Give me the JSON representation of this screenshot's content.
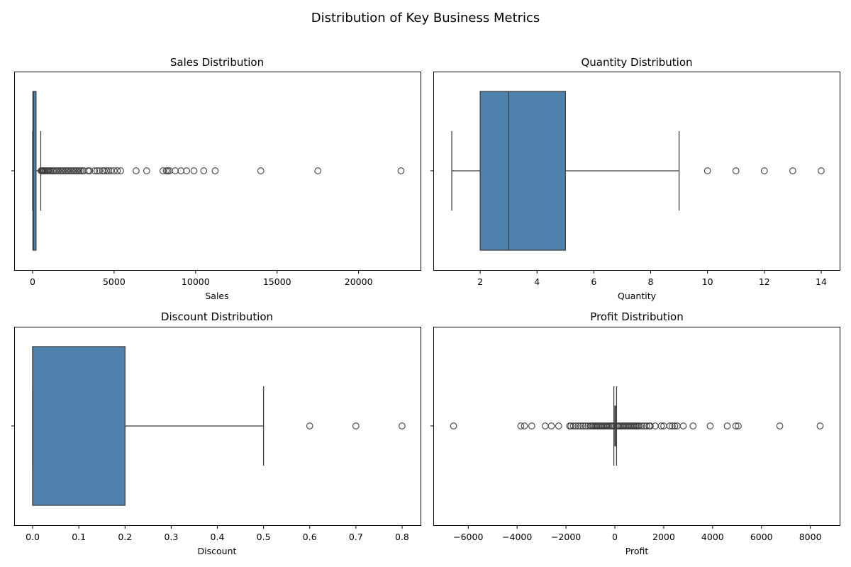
{
  "figure": {
    "suptitle": "Distribution of Key Business Metrics",
    "box_color": "#4f83ad",
    "line_color": "#3f3f3f"
  },
  "chart_data": [
    {
      "type": "boxplot",
      "title": "Sales Distribution",
      "xlabel": "Sales",
      "ylabel": "",
      "xlim": [
        -1130,
        23800
      ],
      "ticks": [
        0,
        5000,
        10000,
        15000,
        20000
      ],
      "tick_labels": [
        "0",
        "5000",
        "10000",
        "15000",
        "20000"
      ],
      "stats": {
        "whisker_low": 0.4,
        "q1": 17,
        "median": 55,
        "q3": 210,
        "whisker_high": 500
      },
      "box_height": 0.8,
      "outliers": [
        520,
        560,
        600,
        650,
        700,
        760,
        820,
        880,
        950,
        1020,
        1100,
        1180,
        1260,
        1350,
        1450,
        1550,
        1650,
        1750,
        1850,
        1950,
        2050,
        2150,
        2250,
        2350,
        2450,
        2550,
        2650,
        2750,
        2850,
        2950,
        3050,
        3150,
        3400,
        3500,
        3800,
        3950,
        4100,
        4300,
        4400,
        4550,
        4650,
        4800,
        5000,
        5200,
        5400,
        6350,
        7000,
        8000,
        8200,
        8300,
        8400,
        8750,
        9100,
        9450,
        9900,
        10500,
        11200,
        14000,
        17500,
        22600
      ]
    },
    {
      "type": "boxplot",
      "title": "Quantity Distribution",
      "xlabel": "Quantity",
      "ylabel": "",
      "xlim": [
        0.35,
        14.65
      ],
      "ticks": [
        2,
        4,
        6,
        8,
        10,
        12,
        14
      ],
      "tick_labels": [
        "2",
        "4",
        "6",
        "8",
        "10",
        "12",
        "14"
      ],
      "stats": {
        "whisker_low": 1,
        "q1": 2,
        "median": 3,
        "q3": 5,
        "whisker_high": 9
      },
      "box_height": 0.8,
      "outliers": [
        10,
        11,
        12,
        13,
        14
      ]
    },
    {
      "type": "boxplot",
      "title": "Discount Distribution",
      "xlabel": "Discount",
      "ylabel": "",
      "xlim": [
        -0.04,
        0.84
      ],
      "ticks": [
        0.0,
        0.1,
        0.2,
        0.3,
        0.4,
        0.5,
        0.6,
        0.7,
        0.8
      ],
      "tick_labels": [
        "0.0",
        "0.1",
        "0.2",
        "0.3",
        "0.4",
        "0.5",
        "0.6",
        "0.7",
        "0.8"
      ],
      "stats": {
        "whisker_low": 0.0,
        "q1": 0.0,
        "median": 0.0,
        "q3": 0.2,
        "whisker_high": 0.5
      },
      "box_height": 0.8,
      "outliers": [
        0.6,
        0.7,
        0.8
      ]
    },
    {
      "type": "boxplot",
      "title": "Profit Distribution",
      "xlabel": "Profit",
      "ylabel": "",
      "xlim": [
        -7430,
        9200
      ],
      "ticks": [
        -6000,
        -4000,
        -2000,
        0,
        2000,
        4000,
        6000,
        8000
      ],
      "tick_labels": [
        "−6000",
        "−4000",
        "−2000",
        "0",
        "2000",
        "4000",
        "6000",
        "8000"
      ],
      "stats": {
        "whisker_low": -40,
        "q1": 2,
        "median": 9,
        "q3": 30,
        "whisker_high": 70
      },
      "box_height": 0.2,
      "outliers": [
        -6600,
        -3850,
        -3700,
        -3400,
        -2850,
        -2600,
        -2300,
        -1850,
        -1800,
        -1700,
        -1600,
        -1500,
        -1400,
        -1300,
        -1200,
        -1100,
        -1000,
        -950,
        -900,
        -850,
        -800,
        -750,
        -700,
        -650,
        -600,
        -550,
        -500,
        -450,
        -400,
        -350,
        -300,
        -250,
        -200,
        -150,
        -100,
        -75,
        100,
        150,
        200,
        250,
        300,
        350,
        400,
        450,
        500,
        550,
        600,
        650,
        700,
        750,
        800,
        850,
        900,
        950,
        1000,
        1100,
        1200,
        1300,
        1400,
        1450,
        1650,
        1900,
        2000,
        2250,
        2350,
        2450,
        2550,
        2800,
        3200,
        3900,
        4600,
        4950,
        5050,
        6750,
        8400
      ]
    }
  ]
}
